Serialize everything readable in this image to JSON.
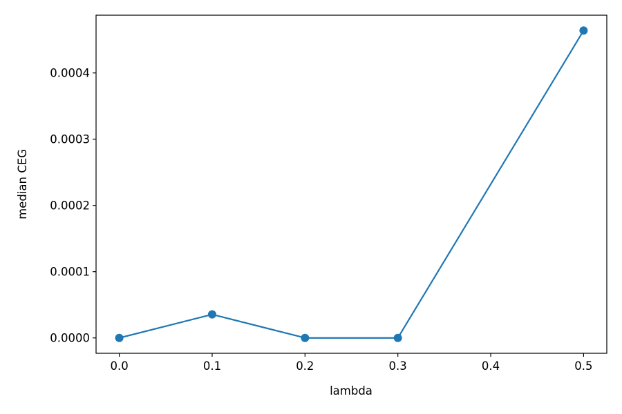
{
  "chart_data": {
    "type": "line",
    "title": "",
    "xlabel": "lambda",
    "ylabel": "median CEG",
    "x": [
      0.0,
      0.1,
      0.2,
      0.3,
      0.5
    ],
    "series": [
      {
        "values": [
          0.0,
          3.55e-05,
          0.0,
          0.0,
          0.000464
        ],
        "color": "#1f77b4",
        "marker": "circle"
      }
    ],
    "xlim": [
      -0.025,
      0.525
    ],
    "ylim": [
      -2.32e-05,
      0.0004872
    ],
    "xticks": [
      0.0,
      0.1,
      0.2,
      0.3,
      0.4,
      0.5
    ],
    "xtick_labels": [
      "0.0",
      "0.1",
      "0.2",
      "0.3",
      "0.4",
      "0.5"
    ],
    "yticks": [
      0.0,
      0.0001,
      0.0002,
      0.0003,
      0.0004
    ],
    "ytick_labels": [
      "0.0000",
      "0.0001",
      "0.0002",
      "0.0003",
      "0.0004"
    ],
    "grid": false,
    "legend": false
  }
}
